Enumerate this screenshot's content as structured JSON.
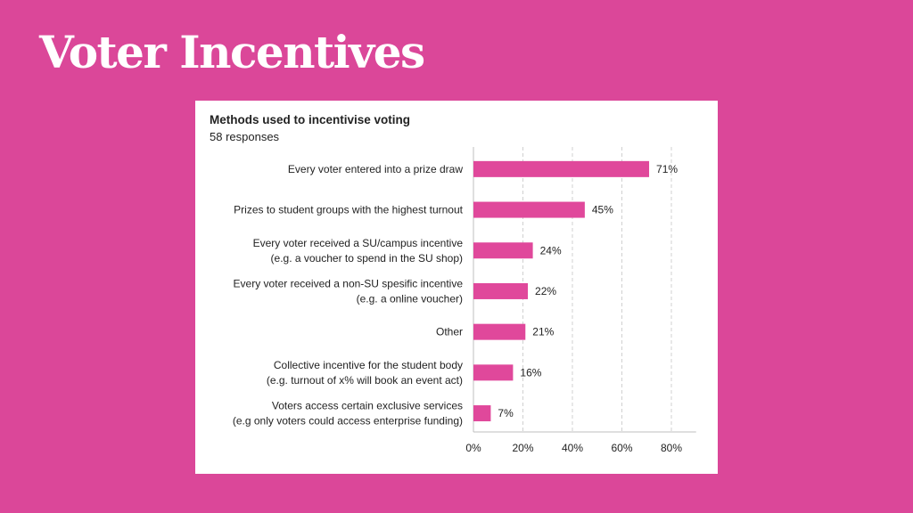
{
  "slide": {
    "title": "Voter Incentives"
  },
  "colors": {
    "background": "#db4799",
    "bar": "#e0489b",
    "card": "#ffffff"
  },
  "chart_data": {
    "type": "bar",
    "orientation": "horizontal",
    "title": "Methods used to incentivise voting",
    "subtitle": "58 responses",
    "categories": [
      [
        "Every voter entered into a prize draw"
      ],
      [
        "Prizes to student groups with the highest turnout"
      ],
      [
        "Every voter received a SU/campus incentive",
        "(e.g. a voucher to spend in the SU shop)"
      ],
      [
        "Every voter received a non-SU spesific incentive",
        "(e.g. a online voucher)"
      ],
      [
        "Other"
      ],
      [
        "Collective incentive for the student body",
        "(e.g. turnout of x% will book an event act)"
      ],
      [
        "Voters access certain exclusive services",
        "(e.g only voters could access enterprise funding)"
      ]
    ],
    "values": [
      71,
      45,
      24,
      22,
      21,
      16,
      7
    ],
    "value_labels": [
      "71%",
      "45%",
      "24%",
      "22%",
      "21%",
      "16%",
      "7%"
    ],
    "xlim": [
      0,
      90
    ],
    "xticks": [
      0,
      20,
      40,
      60,
      80
    ],
    "xtick_labels": [
      "0%",
      "20%",
      "40%",
      "60%",
      "80%"
    ],
    "grid": "vertical dashed"
  }
}
